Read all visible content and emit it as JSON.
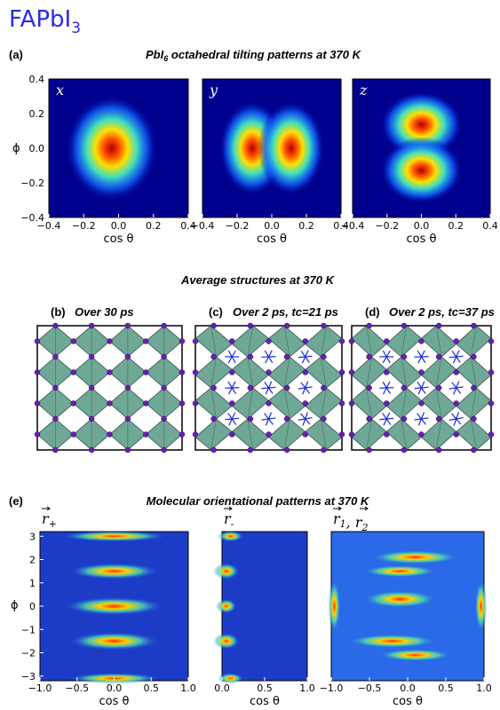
{
  "header": {
    "title": "FAPbI",
    "title_sub": "3"
  },
  "panel_a": {
    "label": "(a)",
    "title_pre": "PbI",
    "title_sub": "6",
    "title_post": " octahedral tilting patterns at 370 K",
    "y_label": "ϕ",
    "x_label": "cos θ",
    "yticks": [
      "0.4",
      "0.2",
      "0.0",
      "−0.2",
      "−0.4"
    ],
    "xticks": [
      "−0.4",
      "−0.2",
      "0.0",
      "0.2",
      "0.4"
    ],
    "plots": [
      {
        "label": "x"
      },
      {
        "label": "y"
      },
      {
        "label": "z"
      }
    ]
  },
  "panel_bcd": {
    "title": "Average structures at 370 K",
    "panels": [
      {
        "label": "(b)",
        "caption": "Over 30 ps"
      },
      {
        "label": "(c)",
        "caption": "Over 2 ps, tc=21 ps"
      },
      {
        "label": "(d)",
        "caption": "Over 2 ps, tc=37 ps"
      }
    ]
  },
  "panel_e": {
    "label": "(e)",
    "title": "Molecular orientational patterns at 370 K",
    "y_label": "ϕ",
    "x_label": "cos θ",
    "yticks": [
      "3",
      "2",
      "1",
      "0",
      "−1",
      "−2",
      "−3"
    ],
    "plots": [
      {
        "symbols": [
          {
            "sym": "r",
            "sub": "+"
          }
        ],
        "xticks": [
          "−1.0",
          "−0.5",
          "0.0",
          "0.5",
          "1.0"
        ]
      },
      {
        "symbols": [
          {
            "sym": "r",
            "sub": "-"
          }
        ],
        "xticks": [
          "0.0",
          "0.5",
          "1.0"
        ]
      },
      {
        "symbols": [
          {
            "sym": "r",
            "sub": "1"
          },
          {
            "sym": "r",
            "sub": "2"
          }
        ],
        "separator": ", ",
        "xticks": [
          "−1.0",
          "−0.5",
          "0.0",
          "0.5",
          "1.0"
        ]
      }
    ]
  }
}
